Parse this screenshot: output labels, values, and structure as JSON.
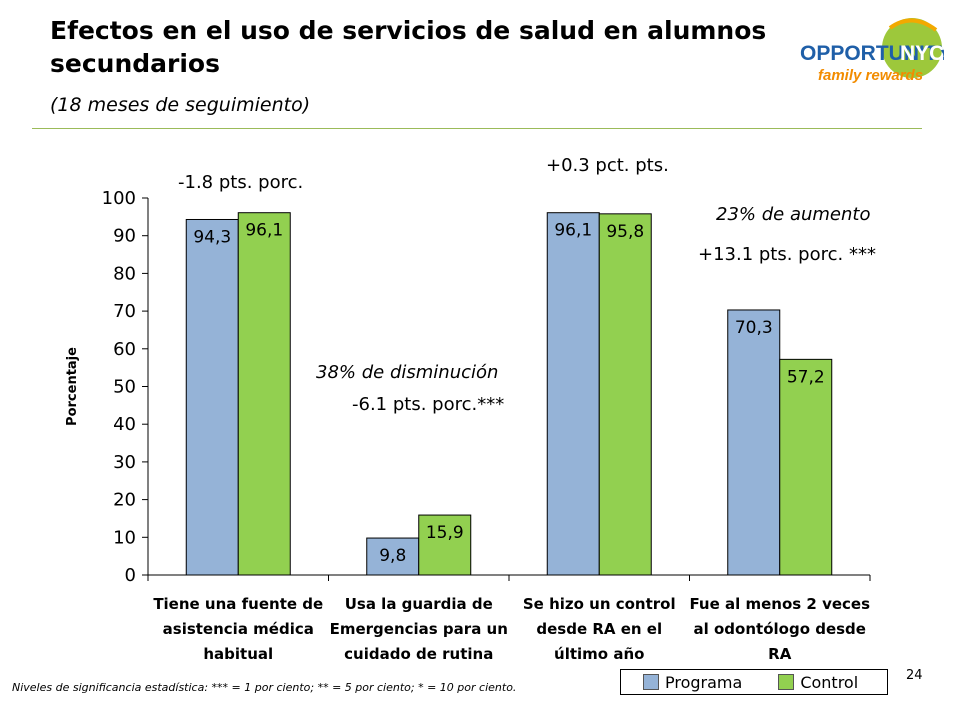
{
  "slide": {
    "title": "Efectos en el uso de servicios de salud en alumnos secundarios",
    "subtitle": "(18 meses de seguimiento)",
    "page_number": "24",
    "footnote": "Niveles de significancia estadística: *** = 1 por ciento; ** = 5 por ciento; * = 10 por ciento.",
    "logo": {
      "line1": "OPPORTUNITY",
      "line1b": "NYC",
      "line2": "family rewards"
    }
  },
  "annotations": {
    "a1": "-1.8 pts. porc.",
    "a2_line1": "38% de disminución",
    "a2_line2": "-6.1 pts. porc.***",
    "a3": "+0.3 pct. pts.",
    "a4_line1": "23% de aumento",
    "a4_line2": "+13.1 pts. porc. ***"
  },
  "legend": {
    "programa": "Programa",
    "control": "Control"
  },
  "colors": {
    "programa": "#95b3d7",
    "control": "#92d050",
    "rule": "#9bbb59"
  },
  "chart_data": {
    "type": "bar",
    "categories": [
      [
        "Tiene una fuente de",
        "asistencia médica",
        "habitual"
      ],
      [
        "Usa la guardia de",
        "Emergencias para un",
        "cuidado de rutina"
      ],
      [
        "Se hizo un control",
        "desde RA en el",
        "último año"
      ],
      [
        "Fue al menos 2 veces",
        "al odontólogo desde",
        "RA"
      ]
    ],
    "series": [
      {
        "name": "Programa",
        "values": [
          94.3,
          9.8,
          96.1,
          70.3
        ],
        "labels": [
          "94,3",
          "9,8",
          "96,1",
          "70,3"
        ]
      },
      {
        "name": "Control",
        "values": [
          96.1,
          15.9,
          95.8,
          57.2
        ],
        "labels": [
          "96,1",
          "15,9",
          "95,8",
          "57,2"
        ]
      }
    ],
    "ylabel": "Porcentaje",
    "ylim": [
      0,
      100
    ],
    "yticks": [
      0,
      10,
      20,
      30,
      40,
      50,
      60,
      70,
      80,
      90,
      100
    ],
    "grid": false,
    "legend_position": "bottom-right"
  }
}
